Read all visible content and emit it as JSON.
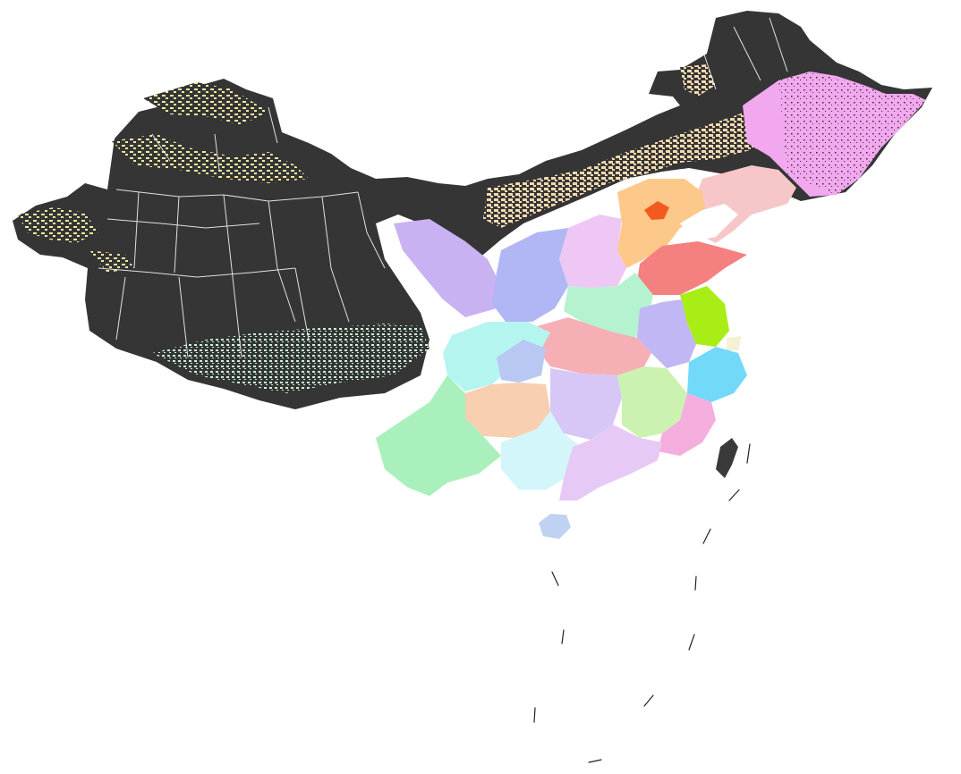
{
  "map": {
    "colors": {
      "background": "#ffffff",
      "dark_land": "#353535",
      "borders": "#ffffff",
      "ocean_dashes": "#222222"
    },
    "regions": [
      {
        "id": "northwest",
        "color": "#353535"
      },
      {
        "id": "tibet",
        "color": "#353535"
      },
      {
        "id": "north-mongolia",
        "color": "#353535"
      },
      {
        "id": "northeast-top",
        "color": "#353535"
      },
      {
        "id": "northeast-pink",
        "color": "#f2a8ee"
      },
      {
        "id": "northeast-light-pink",
        "color": "#f7c6c9"
      },
      {
        "id": "north-orange",
        "color": "#fcc98a"
      },
      {
        "id": "capital-red",
        "color": "#f35a1e"
      },
      {
        "id": "east-coast-red",
        "color": "#f58080"
      },
      {
        "id": "north-central-purple",
        "color": "#eec7f4"
      },
      {
        "id": "west-lavender",
        "color": "#c9b2f2"
      },
      {
        "id": "central-mint",
        "color": "#b5f2cf"
      },
      {
        "id": "central-blue",
        "color": "#b1b6f5"
      },
      {
        "id": "yangtze-lime",
        "color": "#a8ee16"
      },
      {
        "id": "east-lavender",
        "color": "#c0b7f4"
      },
      {
        "id": "central-rose",
        "color": "#f6b0b5"
      },
      {
        "id": "southwest-cyan",
        "color": "#b5f5ef"
      },
      {
        "id": "southeast-sky",
        "color": "#72d9f8"
      },
      {
        "id": "south-central-lavender",
        "color": "#d7c7f6"
      },
      {
        "id": "southeast-green",
        "color": "#cbf2b0"
      },
      {
        "id": "south-peach",
        "color": "#f8cfb0"
      },
      {
        "id": "southeast-pink",
        "color": "#f4aede"
      },
      {
        "id": "southwest-green",
        "color": "#aaf0bc"
      },
      {
        "id": "south-light-cyan",
        "color": "#d2f6f9"
      },
      {
        "id": "south-lilac",
        "color": "#e7c9f5"
      },
      {
        "id": "island-south",
        "color": "#c0d2f2"
      },
      {
        "id": "island-east",
        "color": "#3a3a3a"
      },
      {
        "id": "shanghai",
        "color": "#f6f0d4"
      }
    ]
  }
}
